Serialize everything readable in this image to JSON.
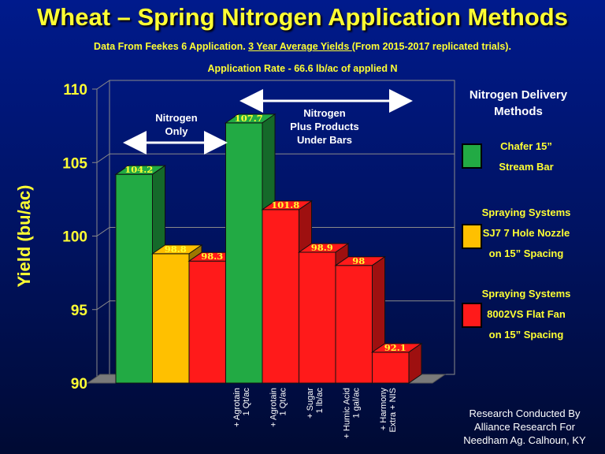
{
  "header": {
    "title": "Wheat – Spring Nitrogen Application Methods",
    "subtitle_pre": "Data From Feekes 6 Application.  ",
    "subtitle_underlined": "3 Year Average Yields ",
    "subtitle_post": "(From 2015-2017 replicated trials).",
    "rate": "Application Rate - 66.6 lb/ac of applied N"
  },
  "legend": {
    "title_line1": "Nitrogen Delivery",
    "title_line2": "Methods",
    "items": [
      {
        "line1": "Chafer 15”",
        "line2": "Stream Bar",
        "color": "#22aa44"
      },
      {
        "line1": "Spraying Systems",
        "line2": "SJ7 7 Hole Nozzle",
        "line3": "on 15” Spacing",
        "color": "#ffc000"
      },
      {
        "line1": "Spraying Systems",
        "line2": "8002VS Flat Fan",
        "line3": "on 15” Spacing",
        "color": "#ff1a1a"
      }
    ]
  },
  "annotations": {
    "left_line1": "Nitrogen",
    "left_line2": "Only",
    "right_line1": "Nitrogen",
    "right_line2": "Plus Products",
    "right_line3": "Under Bars"
  },
  "credit": {
    "line1": "Research Conducted By",
    "line2": "Alliance Research For",
    "line3": "Needham Ag. Calhoun, KY"
  },
  "chart_data": {
    "type": "bar",
    "ylabel": "Yield (bu/ac)",
    "ylim": [
      90,
      110
    ],
    "yticks": [
      90,
      95,
      100,
      105,
      110
    ],
    "grid": true,
    "colors": {
      "green": "#22aa44",
      "yellow": "#ffc000",
      "red": "#ff1a1a"
    },
    "bars": [
      {
        "value": 104.2,
        "label": "104.2",
        "color": "green",
        "xlabel": []
      },
      {
        "value": 98.8,
        "label": "98.8",
        "color": "yellow",
        "xlabel": []
      },
      {
        "value": 98.3,
        "label": "98.3",
        "color": "red",
        "xlabel": []
      },
      {
        "value": 107.7,
        "label": "107.7",
        "color": "green",
        "xlabel": [
          "+ Agrotain",
          "1 Qt/ac"
        ]
      },
      {
        "value": 101.8,
        "label": "101.8",
        "color": "red",
        "xlabel": [
          "+ Agrotain",
          "1 Qt/ac"
        ]
      },
      {
        "value": 98.9,
        "label": "98.9",
        "color": "red",
        "xlabel": [
          "+ Sugar",
          "1 lb/ac"
        ]
      },
      {
        "value": 98,
        "label": "98",
        "color": "red",
        "xlabel": [
          "+ Humic Acid",
          "1 gal/ac"
        ]
      },
      {
        "value": 92.1,
        "label": "92.1",
        "color": "red",
        "xlabel": [
          "+ Harmony",
          "Extra + NIS"
        ]
      }
    ]
  }
}
